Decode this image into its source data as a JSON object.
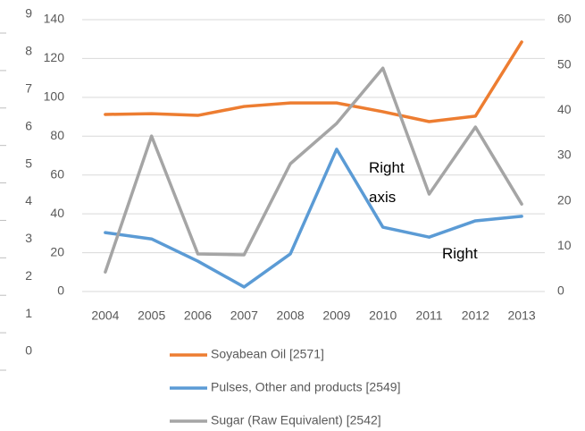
{
  "chart_data": {
    "type": "line",
    "categories": [
      "2004",
      "2005",
      "2006",
      "2007",
      "2008",
      "2009",
      "2010",
      "2011",
      "2012",
      "2013"
    ],
    "series": [
      {
        "name": "Soyabean Oil [2571]",
        "color": "#ed7d31",
        "values": [
          91.2,
          91.6,
          90.7,
          95.3,
          97.1,
          97.1,
          92.6,
          87.5,
          90.3,
          128.5
        ]
      },
      {
        "name": "Pulses, Other and products [2549]",
        "color": "#5b9bd5",
        "axis": "y2",
        "values": [
          13.0,
          11.6,
          6.7,
          1.0,
          8.3,
          31.4,
          14.2,
          12.0,
          15.6,
          16.6
        ]
      },
      {
        "name": "Sugar (Raw Equivalent) [2542]",
        "color": "#a5a5a5",
        "axis": "y2",
        "values": [
          4.3,
          34.3,
          8.3,
          8.1,
          28.2,
          37.1,
          49.3,
          21.5,
          36.3,
          19.3
        ]
      }
    ],
    "ylim": [
      0,
      140
    ],
    "yticks": [
      0,
      20,
      40,
      60,
      80,
      100,
      120,
      140
    ],
    "y2lim": [
      0,
      60
    ],
    "y2ticks": [
      0,
      10,
      20,
      30,
      40,
      50,
      60
    ],
    "y3lim": [
      0,
      9
    ],
    "y3ticks": [
      0,
      1,
      2,
      3,
      4,
      5,
      6,
      7,
      8,
      9
    ],
    "grid": true,
    "annotations": [
      {
        "text": "Right axis"
      },
      {
        "text": "Right"
      }
    ]
  }
}
